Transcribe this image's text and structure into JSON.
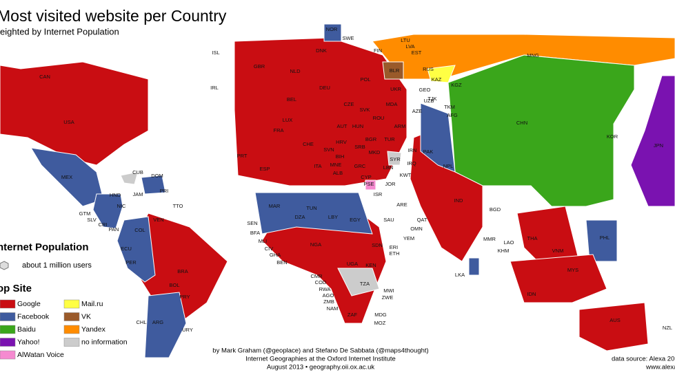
{
  "title": "Most visited website per Country",
  "subtitle": "eighted by Internet Population",
  "legend": {
    "population_title": "nternet Population",
    "population_item": "about 1 million users",
    "site_title": "op Site",
    "items": [
      {
        "label": "Google",
        "color": "#c90d12"
      },
      {
        "label": "Facebook",
        "color": "#3f5b9e"
      },
      {
        "label": "Baidu",
        "color": "#3aa61b"
      },
      {
        "label": "Yahoo!",
        "color": "#7a12b0"
      },
      {
        "label": "AlWatan Voice",
        "color": "#f58ad0"
      },
      {
        "label": "Mail.ru",
        "color": "#ffff44"
      },
      {
        "label": "VK",
        "color": "#9a5a2a"
      },
      {
        "label": "Yandex",
        "color": "#ff8c00"
      },
      {
        "label": "no information",
        "color": "#cccccc"
      }
    ]
  },
  "countries": [
    "CAN",
    "USA",
    "MEX",
    "CUB",
    "DOM",
    "JAM",
    "PRI",
    "HND",
    "GTM",
    "NIC",
    "SLV",
    "CRI",
    "PAN",
    "TTO",
    "VEN",
    "COL",
    "ECU",
    "PER",
    "BRA",
    "BOL",
    "PRY",
    "CHL",
    "ARG",
    "URY",
    "ISL",
    "IRL",
    "GBR",
    "NOR",
    "SWE",
    "FIN",
    "LTU",
    "LVA",
    "EST",
    "RUS",
    "BLR",
    "DNK",
    "NLD",
    "DEU",
    "POL",
    "UKR",
    "BEL",
    "LUX",
    "CZE",
    "FRA",
    "SVK",
    "MDA",
    "AUT",
    "HUN",
    "ROU",
    "CHE",
    "SVN",
    "HRV",
    "SRB",
    "BGR",
    "BIH",
    "MNE",
    "MKD",
    "ALB",
    "GRC",
    "TUR",
    "ARM",
    "AZE",
    "GEO",
    "KAZ",
    "KGZ",
    "UZB",
    "TJK",
    "TKM",
    "AFG",
    "PRT",
    "ESP",
    "ITA",
    "SYR",
    "IRQ",
    "IRN",
    "PAK",
    "CYP",
    "LBN",
    "KWT",
    "ISR",
    "PSE",
    "JOR",
    "ARE",
    "QAT",
    "SAU",
    "OMN",
    "YEM",
    "NPL",
    "IND",
    "BGD",
    "CHN",
    "MNG",
    "KOR",
    "JPN",
    "MAR",
    "DZA",
    "TUN",
    "LBY",
    "EGY",
    "SEN",
    "BFA",
    "MLI",
    "CIV",
    "GHA",
    "BEN",
    "NGA",
    "SDN",
    "ERI",
    "ETH",
    "UGA",
    "KEN",
    "CMR",
    "COD",
    "RWA",
    "AGO",
    "ZMB",
    "NAM",
    "TZA",
    "MWI",
    "ZWE",
    "MDG",
    "MOZ",
    "ZAF",
    "MMR",
    "LAO",
    "KHM",
    "THA",
    "VNM",
    "PHL",
    "MYS",
    "LKA",
    "IDN",
    "AUS",
    "NZL"
  ],
  "credits": [
    "by Mark Graham (@geoplace) and Stefano De Sabbata (@maps4thought)",
    "Internet Geographies at the Oxford Internet Institute",
    "August 2013 • geography.oii.ox.ac.uk"
  ],
  "source": [
    "data source: Alexa 20",
    "www.alexa.c"
  ]
}
